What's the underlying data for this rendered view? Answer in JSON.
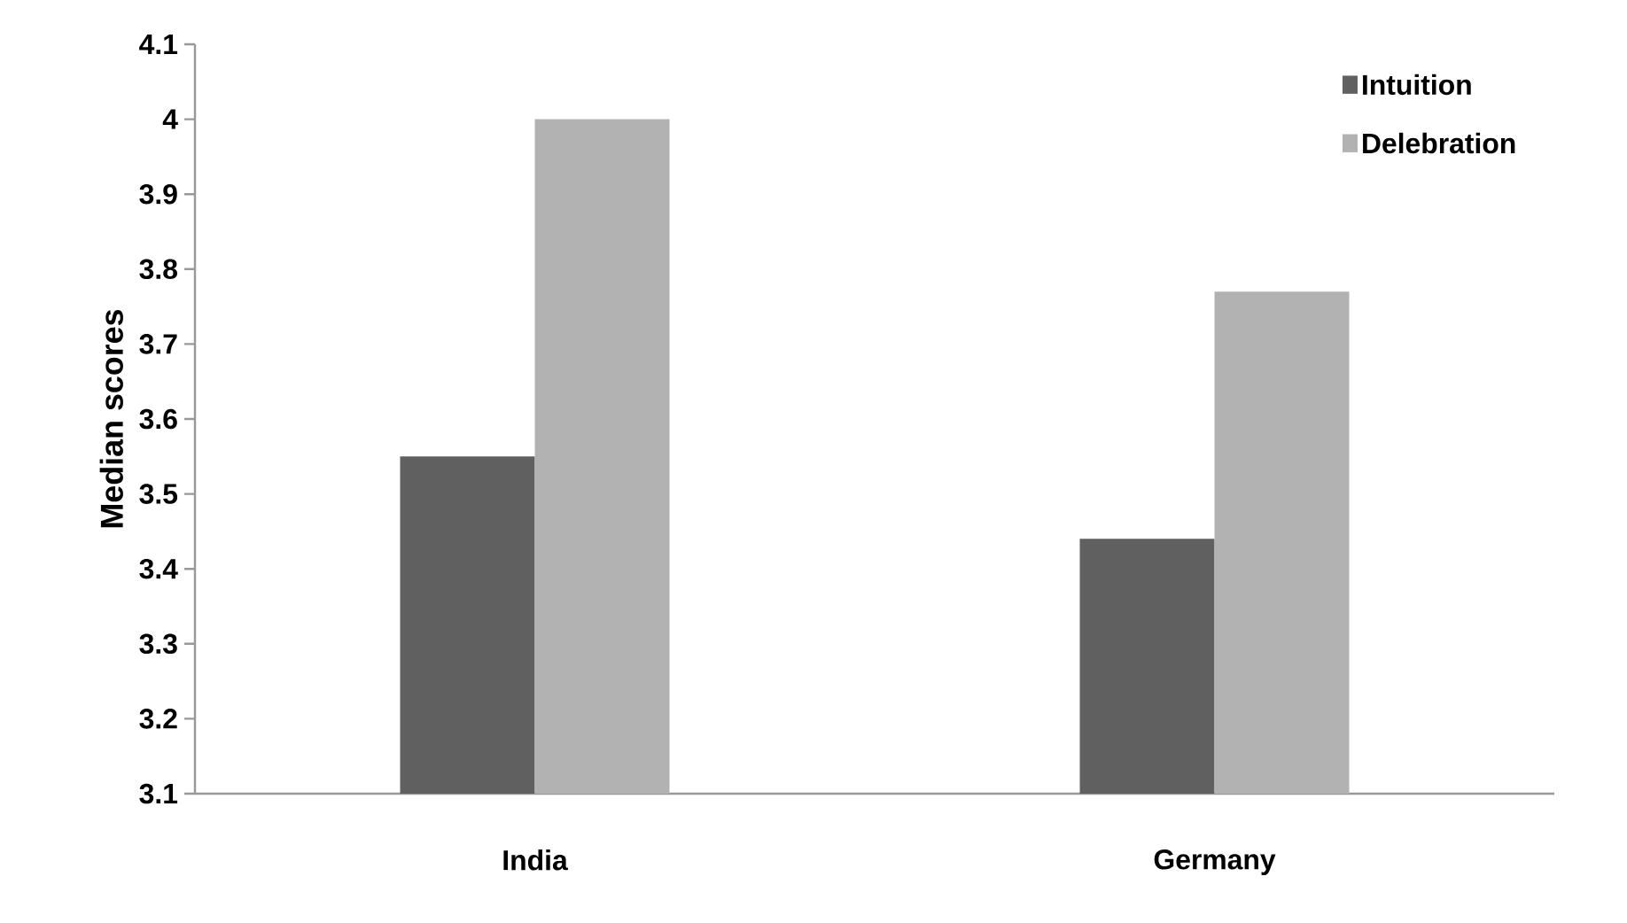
{
  "chart_data": {
    "type": "bar",
    "ylabel": "Median scores",
    "categories": [
      "India",
      "Germany"
    ],
    "series": [
      {
        "name": "Intuition",
        "color": "#606060",
        "values": [
          3.55,
          3.44
        ]
      },
      {
        "name": "Delebration",
        "color": "#b2b2b2",
        "values": [
          4.0,
          3.77
        ]
      }
    ],
    "ylim": [
      3.1,
      4.1
    ],
    "yticks": [
      3.1,
      3.2,
      3.3,
      3.4,
      3.5,
      3.6,
      3.7,
      3.8,
      3.9,
      {
        "value": 4.0,
        "label": "4"
      },
      4.1
    ],
    "legend": "top right"
  }
}
